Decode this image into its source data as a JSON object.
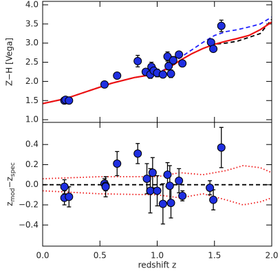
{
  "chart_data": [
    {
      "type": "scatter",
      "ylabel": "Z−H [Vega]",
      "xlim": [
        0,
        2.0
      ],
      "xticks": [
        0,
        0.5,
        1,
        1.5,
        2
      ],
      "ylim": [
        0.93,
        4.09
      ],
      "yticks": [
        {
          "value": 1,
          "label": "1.0"
        },
        1.5,
        {
          "value": 2,
          "label": "2.0"
        },
        2.5,
        {
          "value": 3,
          "label": "3.0"
        },
        3.5,
        {
          "value": 4,
          "label": "4.0"
        }
      ],
      "marker_color": "#1f2fe0",
      "x": [
        0.19,
        0.2,
        0.23,
        0.54,
        0.65,
        0.83,
        0.9,
        0.94,
        0.95,
        0.97,
        1.0,
        1.05,
        1.09,
        1.1,
        1.12,
        1.14,
        1.19,
        1.22,
        1.47,
        1.49,
        1.56
      ],
      "values": [
        1.5,
        1.52,
        1.5,
        1.92,
        2.15,
        2.53,
        2.25,
        2.18,
        2.38,
        2.28,
        2.22,
        2.18,
        2.65,
        2.4,
        2.2,
        2.55,
        2.7,
        2.47,
        3.02,
        2.85,
        3.45
      ],
      "errors": [
        0.05,
        0.04,
        0.04,
        0.05,
        0.05,
        0.15,
        0.08,
        0.1,
        0.12,
        0.1,
        0.1,
        0.08,
        0.12,
        0.1,
        0.1,
        0.1,
        0.08,
        0.08,
        0.08,
        0.08,
        0.15
      ],
      "lines": [
        {
          "color": "#000000",
          "style": "dashed",
          "x": [
            0,
            0.2,
            0.4,
            0.6,
            0.8,
            1.0,
            1.1,
            1.2,
            1.3,
            1.4,
            1.5,
            1.6,
            1.7,
            1.8,
            1.9,
            2.0
          ],
          "values": [
            1.42,
            1.55,
            1.75,
            1.95,
            2.1,
            2.2,
            2.35,
            2.55,
            2.72,
            2.86,
            2.97,
            3.0,
            3.05,
            3.15,
            3.25,
            3.62
          ]
        },
        {
          "color": "#2020ff",
          "style": "dashed",
          "x": [
            0,
            0.2,
            0.4,
            0.6,
            0.8,
            1.0,
            1.1,
            1.2,
            1.3,
            1.4,
            1.5,
            1.6,
            1.7,
            1.8,
            1.9,
            2.0
          ],
          "values": [
            1.42,
            1.55,
            1.75,
            1.95,
            2.1,
            2.2,
            2.38,
            2.62,
            2.82,
            3.02,
            3.2,
            3.3,
            3.35,
            3.42,
            3.5,
            3.68
          ]
        },
        {
          "color": "#ee1111",
          "style": "solid",
          "x": [
            0,
            0.2,
            0.4,
            0.6,
            0.8,
            1.0,
            1.1,
            1.2,
            1.3,
            1.4,
            1.5,
            1.6,
            1.7,
            1.8,
            1.9,
            2.0
          ],
          "values": [
            1.42,
            1.55,
            1.75,
            1.95,
            2.1,
            2.2,
            2.35,
            2.55,
            2.72,
            2.86,
            2.97,
            3.05,
            3.12,
            3.2,
            3.35,
            3.55
          ]
        }
      ]
    },
    {
      "type": "scatter",
      "ylabel_parts": [
        "z",
        "mod",
        "−z",
        "spec"
      ],
      "xlabel": "redshift z",
      "xlim": [
        0,
        2.0
      ],
      "xticks": [
        {
          "value": 0,
          "label": "0.0"
        },
        0.5,
        {
          "value": 1,
          "label": "1.0"
        },
        1.5,
        {
          "value": 2,
          "label": "2.0"
        }
      ],
      "ylim": [
        -0.61,
        0.62
      ],
      "yticks": [
        {
          "value": -0.4,
          "label": "−0.4"
        },
        {
          "value": -0.2,
          "label": "−0.2"
        },
        {
          "value": 0,
          "label": "0.0"
        },
        0.2,
        0.4
      ],
      "marker_color": "#1f2fe0",
      "x": [
        0.19,
        0.19,
        0.23,
        0.54,
        0.55,
        0.55,
        0.65,
        0.83,
        0.91,
        0.94,
        0.96,
        1.0,
        1.05,
        1.09,
        1.11,
        1.12,
        1.19,
        1.22,
        1.46,
        1.49,
        1.56
      ],
      "values": [
        -0.02,
        -0.13,
        -0.12,
        0.01,
        -0.01,
        -0.02,
        0.21,
        0.31,
        0.06,
        -0.06,
        0.12,
        -0.06,
        -0.19,
        0.1,
        -0.01,
        -0.18,
        0.04,
        -0.11,
        -0.03,
        -0.15,
        0.37
      ],
      "errors": [
        0.07,
        0.07,
        0.1,
        0.05,
        0.05,
        0.1,
        0.12,
        0.1,
        0.15,
        0.22,
        0.15,
        0.15,
        0.2,
        0.12,
        0.2,
        0.15,
        0.12,
        0.05,
        0.07,
        0.1,
        0.2
      ],
      "lines": [
        {
          "color": "#000000",
          "style": "dashed",
          "x": [
            0,
            2.0
          ],
          "values": [
            0,
            0
          ]
        },
        {
          "color": "#ee1111",
          "style": "dotted",
          "x": [
            0,
            0.5,
            1.0,
            1.2,
            1.4,
            1.6,
            1.75,
            1.9,
            2.0
          ],
          "values": [
            0.06,
            0.08,
            0.08,
            0.12,
            0.1,
            0.14,
            0.19,
            0.17,
            0.12
          ]
        },
        {
          "color": "#ee1111",
          "style": "dotted",
          "x": [
            0,
            0.5,
            1.0,
            1.2,
            1.4,
            1.6,
            1.75,
            1.9,
            2.0
          ],
          "values": [
            -0.06,
            -0.09,
            -0.1,
            -0.13,
            -0.09,
            -0.15,
            -0.2,
            -0.17,
            -0.13
          ]
        }
      ]
    }
  ]
}
